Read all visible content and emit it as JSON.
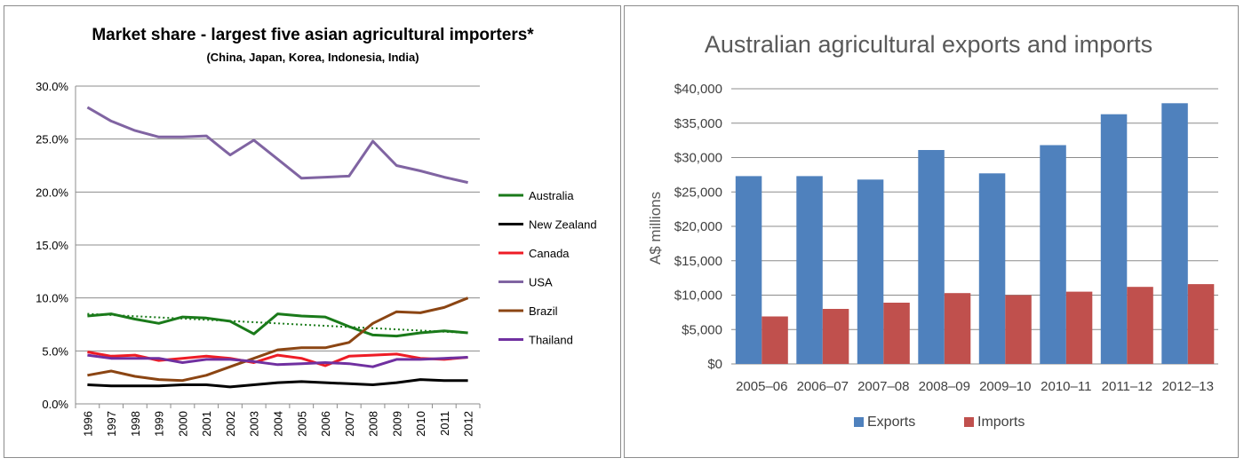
{
  "chart_data": [
    {
      "type": "line",
      "title": "Market share - largest five asian agricultural importers*",
      "subtitle": "(China, Japan, Korea, Indonesia, India)",
      "x": [
        "1996",
        "1997",
        "1998",
        "1999",
        "2000",
        "2001",
        "2002",
        "2003",
        "2004",
        "2005",
        "2006",
        "2007",
        "2008",
        "2009",
        "2010",
        "2011",
        "2012"
      ],
      "ylim": [
        0,
        30
      ],
      "y_ticks": [
        "0.0%",
        "5.0%",
        "10.0%",
        "15.0%",
        "20.0%",
        "25.0%",
        "30.0%"
      ],
      "grid": true,
      "legend_position": "right",
      "series": [
        {
          "name": "Australia",
          "color": "#1a7a1a",
          "values": [
            8.3,
            8.5,
            8.0,
            7.6,
            8.2,
            8.1,
            7.8,
            6.6,
            8.5,
            8.3,
            8.2,
            7.3,
            6.5,
            6.4,
            6.7,
            6.9,
            6.7
          ]
        },
        {
          "name": "New Zealand",
          "color": "#000000",
          "values": [
            1.8,
            1.7,
            1.7,
            1.7,
            1.8,
            1.8,
            1.6,
            1.8,
            2.0,
            2.1,
            2.0,
            1.9,
            1.8,
            2.0,
            2.3,
            2.2,
            2.2
          ]
        },
        {
          "name": "Canada",
          "color": "#ee1c25",
          "values": [
            4.9,
            4.5,
            4.6,
            4.1,
            4.3,
            4.5,
            4.3,
            3.9,
            4.6,
            4.3,
            3.6,
            4.5,
            4.6,
            4.7,
            4.3,
            4.2,
            4.4
          ]
        },
        {
          "name": "USA",
          "color": "#8064a2",
          "values": [
            28.0,
            26.7,
            25.8,
            25.2,
            25.2,
            25.3,
            23.5,
            24.9,
            23.1,
            21.3,
            21.4,
            21.5,
            24.8,
            22.5,
            22.0,
            21.4,
            20.9
          ]
        },
        {
          "name": "Brazil",
          "color": "#8b4513",
          "values": [
            2.7,
            3.1,
            2.6,
            2.3,
            2.2,
            2.7,
            3.5,
            4.3,
            5.1,
            5.3,
            5.3,
            5.8,
            7.6,
            8.7,
            8.6,
            9.1,
            10.0
          ]
        },
        {
          "name": "Thailand",
          "color": "#7030a0",
          "values": [
            4.6,
            4.3,
            4.3,
            4.3,
            3.9,
            4.2,
            4.2,
            4.0,
            3.7,
            3.8,
            3.9,
            3.8,
            3.5,
            4.2,
            4.2,
            4.3,
            4.4
          ]
        }
      ],
      "trendline": {
        "series": "Australia",
        "style": "dotted",
        "start": 8.5,
        "end": 6.7
      }
    },
    {
      "type": "bar",
      "title": "Australian agricultural exports and imports",
      "ylabel": "A$ millions",
      "categories": [
        "2005–06",
        "2006–07",
        "2007–08",
        "2008–09",
        "2009–10",
        "2010–11",
        "2011–12",
        "2012–13"
      ],
      "ylim": [
        0,
        40000
      ],
      "y_ticks": [
        "$0",
        "$5,000",
        "$10,000",
        "$15,000",
        "$20,000",
        "$25,000",
        "$30,000",
        "$35,000",
        "$40,000"
      ],
      "grid": true,
      "legend_position": "bottom",
      "series": [
        {
          "name": "Exports",
          "color": "#4f81bd",
          "values": [
            27300,
            27300,
            26800,
            31100,
            27700,
            31800,
            36300,
            37900
          ]
        },
        {
          "name": "Imports",
          "color": "#c0504d",
          "values": [
            6900,
            8000,
            8900,
            10300,
            10000,
            10500,
            11200,
            11600
          ]
        }
      ]
    }
  ]
}
